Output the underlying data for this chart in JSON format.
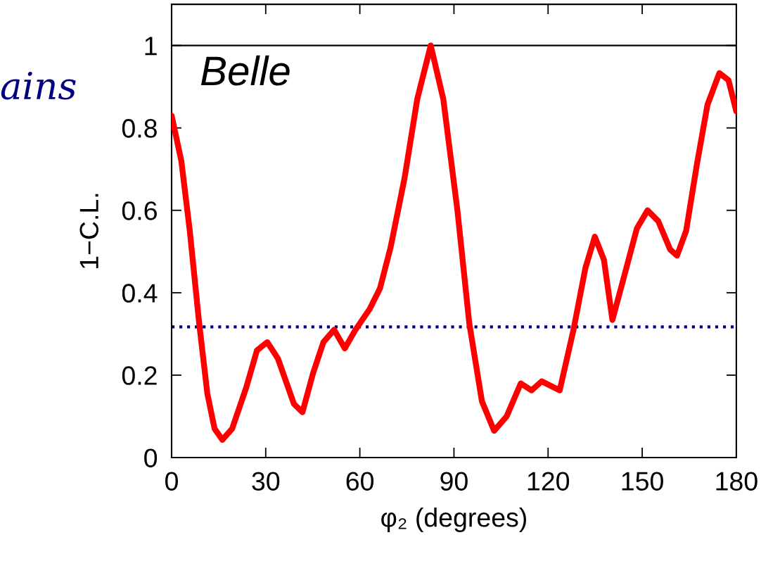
{
  "chart_data": {
    "type": "line",
    "xlabel": "φ₂ (degrees)",
    "ylabel": "1−C.L.",
    "annotations": [
      "Belle",
      "ains"
    ],
    "xlim": [
      0,
      180
    ],
    "xticks": [
      0,
      30,
      60,
      90,
      120,
      150,
      180
    ],
    "ylim": [
      0,
      1.1
    ],
    "yticks": [
      0,
      0.2,
      0.4,
      0.6,
      0.8,
      1
    ],
    "grid": false,
    "legend": false,
    "line_style": "solid",
    "ref_lines": [
      {
        "axis": "y",
        "value": 1,
        "color": "#000000",
        "line_style": "solid"
      },
      {
        "axis": "y",
        "value": 0.317,
        "color": "#000080",
        "line_style": "dotted"
      }
    ],
    "series": [
      {
        "color": "#ff0000",
        "x": [
          0,
          3.1,
          5.8,
          8.8,
          11.4,
          13.7,
          16.2,
          19.3,
          23.8,
          27.2,
          30.5,
          33.9,
          39,
          41.7,
          45.1,
          48.4,
          51.8,
          55.2,
          58.6,
          63.1,
          66.4,
          69.8,
          74.3,
          78.3,
          82.6,
          86.6,
          91.1,
          94.9,
          98.9,
          102.8,
          106.8,
          111.3,
          114.7,
          118,
          123.7,
          128.1,
          131.9,
          134.9,
          137.8,
          140.5,
          143.9,
          148.3,
          151.7,
          155.1,
          158.9,
          161.1,
          164,
          167.4,
          170.8,
          174.6,
          177.5,
          180
        ],
        "values": [
          0.83,
          0.72,
          0.55,
          0.325,
          0.155,
          0.07,
          0.043,
          0.07,
          0.17,
          0.26,
          0.28,
          0.24,
          0.13,
          0.11,
          0.205,
          0.28,
          0.31,
          0.265,
          0.31,
          0.36,
          0.41,
          0.51,
          0.68,
          0.87,
          1.0,
          0.87,
          0.6,
          0.325,
          0.137,
          0.065,
          0.1,
          0.18,
          0.163,
          0.185,
          0.163,
          0.31,
          0.46,
          0.536,
          0.48,
          0.334,
          0.43,
          0.556,
          0.6,
          0.574,
          0.505,
          0.49,
          0.55,
          0.71,
          0.856,
          0.933,
          0.916,
          0.84
        ]
      }
    ]
  }
}
